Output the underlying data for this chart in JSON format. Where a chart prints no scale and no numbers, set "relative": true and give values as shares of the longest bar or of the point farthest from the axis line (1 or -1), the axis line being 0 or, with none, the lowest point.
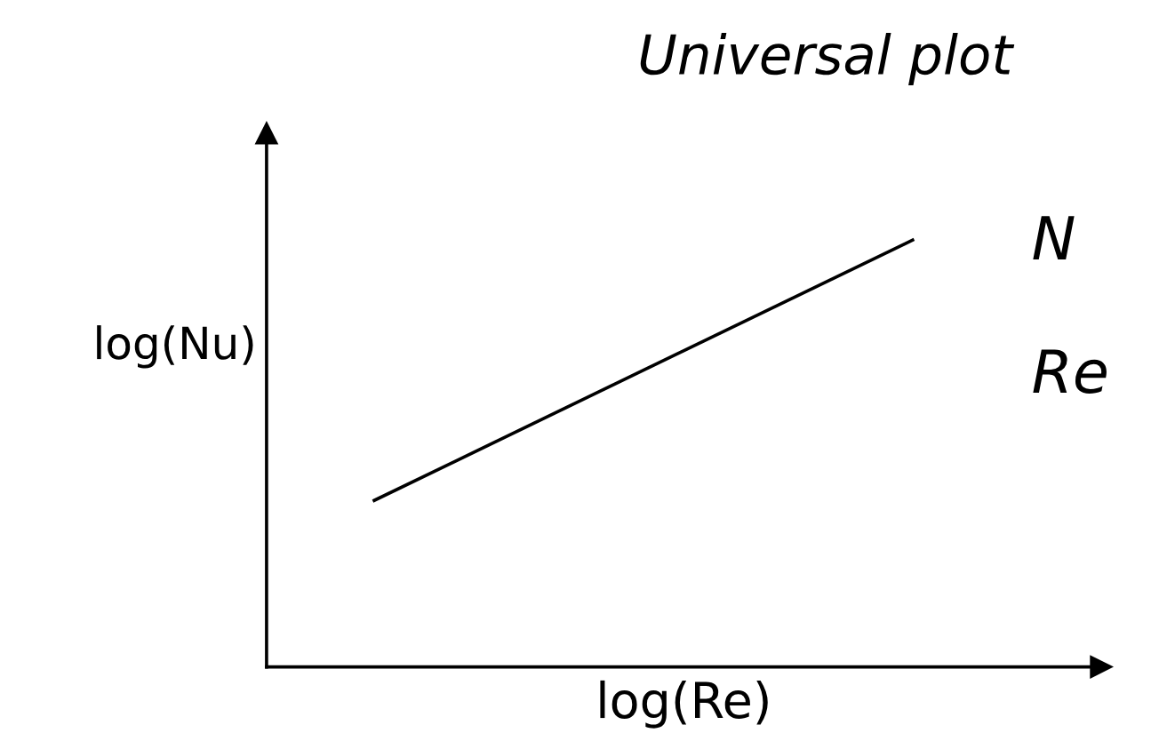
{
  "chart_data": {
    "type": "line",
    "title": "Universal plot",
    "xlabel": "log(Re)",
    "ylabel": "log(Nu)",
    "categories": [
      null,
      null
    ],
    "relative": true,
    "series": [
      {
        "color": "#000000",
        "values": [
          0.39,
          1
        ]
      }
    ],
    "annotations": [
      "N",
      "Re"
    ],
    "grid": false,
    "legend": false,
    "marker": "none",
    "line_style": "solid"
  }
}
